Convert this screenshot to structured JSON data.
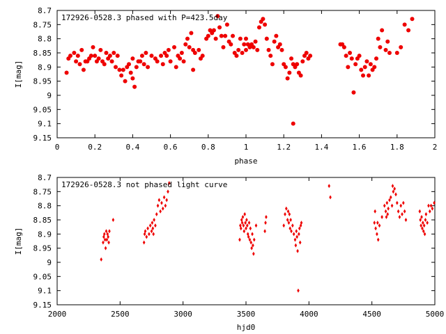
{
  "chart_data": [
    {
      "type": "scatter",
      "title": "172926-0528.3 phased with P=423.5day",
      "xlabel": "phase",
      "ylabel": "I[mag]",
      "xlim": [
        0,
        2
      ],
      "ylim": [
        9.15,
        8.7
      ],
      "y_inverted": true,
      "x_ticks": [
        0,
        0.2,
        0.4,
        0.6,
        0.8,
        1,
        1.2,
        1.4,
        1.6,
        1.8,
        2
      ],
      "x_tick_labels": [
        "0",
        "0.2",
        "0.4",
        "0.6",
        "0.8",
        "1",
        "1.2",
        "1.4",
        "1.6",
        "1.8",
        "2"
      ],
      "y_ticks": [
        8.7,
        8.75,
        8.8,
        8.85,
        8.9,
        8.95,
        9,
        9.05,
        9.1,
        9.15
      ],
      "y_tick_labels": [
        "8.7",
        "8.75",
        "8.8",
        "8.85",
        "8.9",
        "8.95",
        "9",
        "9.05",
        "9.1",
        "9.15"
      ],
      "grid": false,
      "marker": "filled-circle",
      "color": "#ee0000",
      "points": [
        [
          0.05,
          8.92
        ],
        [
          0.06,
          8.87
        ],
        [
          0.07,
          8.86
        ],
        [
          0.09,
          8.85
        ],
        [
          0.1,
          8.88
        ],
        [
          0.11,
          8.86
        ],
        [
          0.12,
          8.89
        ],
        [
          0.13,
          8.84
        ],
        [
          0.14,
          8.91
        ],
        [
          0.15,
          8.88
        ],
        [
          0.16,
          8.88
        ],
        [
          0.17,
          8.87
        ],
        [
          0.18,
          8.86
        ],
        [
          0.19,
          8.83
        ],
        [
          0.2,
          8.86
        ],
        [
          0.21,
          8.88
        ],
        [
          0.22,
          8.87
        ],
        [
          0.23,
          8.84
        ],
        [
          0.24,
          8.88
        ],
        [
          0.25,
          8.89
        ],
        [
          0.26,
          8.85
        ],
        [
          0.27,
          8.87
        ],
        [
          0.28,
          8.86
        ],
        [
          0.29,
          8.88
        ],
        [
          0.3,
          8.85
        ],
        [
          0.31,
          8.9
        ],
        [
          0.32,
          8.86
        ],
        [
          0.33,
          8.91
        ],
        [
          0.34,
          8.93
        ],
        [
          0.35,
          8.91
        ],
        [
          0.36,
          8.95
        ],
        [
          0.37,
          8.9
        ],
        [
          0.38,
          8.89
        ],
        [
          0.39,
          8.92
        ],
        [
          0.4,
          8.87
        ],
        [
          0.4,
          8.94
        ],
        [
          0.41,
          8.97
        ],
        [
          0.42,
          8.9
        ],
        [
          0.43,
          8.88
        ],
        [
          0.44,
          8.88
        ],
        [
          0.45,
          8.86
        ],
        [
          0.46,
          8.89
        ],
        [
          0.47,
          8.85
        ],
        [
          0.48,
          8.9
        ],
        [
          0.5,
          8.86
        ],
        [
          0.52,
          8.87
        ],
        [
          0.53,
          8.88
        ],
        [
          0.55,
          8.86
        ],
        [
          0.56,
          8.89
        ],
        [
          0.57,
          8.85
        ],
        [
          0.58,
          8.86
        ],
        [
          0.59,
          8.84
        ],
        [
          0.6,
          8.88
        ],
        [
          0.62,
          8.83
        ],
        [
          0.63,
          8.9
        ],
        [
          0.64,
          8.86
        ],
        [
          0.65,
          8.87
        ],
        [
          0.66,
          8.85
        ],
        [
          0.67,
          8.88
        ],
        [
          0.68,
          8.82
        ],
        [
          0.69,
          8.8
        ],
        [
          0.7,
          8.83
        ],
        [
          0.71,
          8.78
        ],
        [
          0.72,
          8.84
        ],
        [
          0.72,
          8.91
        ],
        [
          0.73,
          8.85
        ],
        [
          0.75,
          8.84
        ],
        [
          0.76,
          8.87
        ],
        [
          0.77,
          8.86
        ],
        [
          0.79,
          8.8
        ],
        [
          0.8,
          8.79
        ],
        [
          0.81,
          8.77
        ],
        [
          0.82,
          8.78
        ],
        [
          0.83,
          8.77
        ],
        [
          0.84,
          8.8
        ],
        [
          0.85,
          8.72
        ],
        [
          0.86,
          8.76
        ],
        [
          0.87,
          8.79
        ],
        [
          0.88,
          8.83
        ],
        [
          0.89,
          8.79
        ],
        [
          0.9,
          8.75
        ],
        [
          0.91,
          8.81
        ],
        [
          0.92,
          8.82
        ],
        [
          0.93,
          8.79
        ],
        [
          0.94,
          8.85
        ],
        [
          0.95,
          8.86
        ],
        [
          0.96,
          8.84
        ],
        [
          0.97,
          8.8
        ],
        [
          0.98,
          8.85
        ],
        [
          0.99,
          8.82
        ],
        [
          1.0,
          8.84
        ],
        [
          1.0,
          8.8
        ],
        [
          1.01,
          8.82
        ],
        [
          1.02,
          8.83
        ],
        [
          1.03,
          8.82
        ],
        [
          1.04,
          8.83
        ],
        [
          1.05,
          8.81
        ],
        [
          1.06,
          8.84
        ],
        [
          1.07,
          8.76
        ],
        [
          1.08,
          8.74
        ],
        [
          1.09,
          8.73
        ],
        [
          1.1,
          8.75
        ],
        [
          1.11,
          8.8
        ],
        [
          1.12,
          8.84
        ],
        [
          1.13,
          8.86
        ],
        [
          1.14,
          8.89
        ],
        [
          1.15,
          8.81
        ],
        [
          1.16,
          8.79
        ],
        [
          1.17,
          8.83
        ],
        [
          1.18,
          8.82
        ],
        [
          1.19,
          8.84
        ],
        [
          1.2,
          8.89
        ],
        [
          1.21,
          8.9
        ],
        [
          1.22,
          8.94
        ],
        [
          1.23,
          8.92
        ],
        [
          1.24,
          8.87
        ],
        [
          1.25,
          8.89
        ],
        [
          1.25,
          9.1
        ],
        [
          1.26,
          8.9
        ],
        [
          1.27,
          8.89
        ],
        [
          1.28,
          8.92
        ],
        [
          1.29,
          8.93
        ],
        [
          1.3,
          8.88
        ],
        [
          1.31,
          8.86
        ],
        [
          1.32,
          8.85
        ],
        [
          1.33,
          8.87
        ],
        [
          1.34,
          8.86
        ],
        [
          1.5,
          8.82
        ],
        [
          1.51,
          8.82
        ],
        [
          1.52,
          8.83
        ],
        [
          1.53,
          8.86
        ],
        [
          1.54,
          8.9
        ],
        [
          1.55,
          8.85
        ],
        [
          1.56,
          8.87
        ],
        [
          1.57,
          8.99
        ],
        [
          1.58,
          8.89
        ],
        [
          1.59,
          8.87
        ],
        [
          1.6,
          8.86
        ],
        [
          1.61,
          8.91
        ],
        [
          1.62,
          8.93
        ],
        [
          1.63,
          8.9
        ],
        [
          1.64,
          8.88
        ],
        [
          1.65,
          8.93
        ],
        [
          1.66,
          8.89
        ],
        [
          1.67,
          8.91
        ],
        [
          1.68,
          8.9
        ],
        [
          1.69,
          8.87
        ],
        [
          1.7,
          8.8
        ],
        [
          1.71,
          8.83
        ],
        [
          1.72,
          8.77
        ],
        [
          1.74,
          8.84
        ],
        [
          1.75,
          8.81
        ],
        [
          1.76,
          8.85
        ],
        [
          1.8,
          8.85
        ],
        [
          1.82,
          8.83
        ],
        [
          1.84,
          8.75
        ],
        [
          1.86,
          8.77
        ],
        [
          1.88,
          8.73
        ]
      ]
    },
    {
      "type": "scatter",
      "title": "172926-0528.3 not phased light curve",
      "xlabel": "hjd0",
      "ylabel": "I[mag]",
      "xlim": [
        2000,
        5000
      ],
      "ylim": [
        9.15,
        8.7
      ],
      "y_inverted": true,
      "x_ticks": [
        2000,
        2500,
        3000,
        3500,
        4000,
        4500,
        5000
      ],
      "x_tick_labels": [
        "2000",
        "2500",
        "3000",
        "3500",
        "4000",
        "4500",
        "5000"
      ],
      "y_ticks": [
        8.7,
        8.75,
        8.8,
        8.85,
        8.9,
        8.95,
        9,
        9.05,
        9.1,
        9.15
      ],
      "y_tick_labels": [
        "8.7",
        "8.75",
        "8.8",
        "8.85",
        "8.9",
        "8.95",
        "9",
        "9.05",
        "9.1",
        "9.15"
      ],
      "grid": false,
      "marker": "small-diamond",
      "color": "#ee0000",
      "points": [
        [
          2350,
          8.99
        ],
        [
          2365,
          8.93
        ],
        [
          2370,
          8.91
        ],
        [
          2375,
          8.9
        ],
        [
          2380,
          8.92
        ],
        [
          2385,
          8.95
        ],
        [
          2390,
          8.89
        ],
        [
          2395,
          8.92
        ],
        [
          2400,
          8.9
        ],
        [
          2405,
          8.91
        ],
        [
          2410,
          8.93
        ],
        [
          2415,
          8.89
        ],
        [
          2445,
          8.85
        ],
        [
          2690,
          8.93
        ],
        [
          2695,
          8.9
        ],
        [
          2700,
          8.89
        ],
        [
          2710,
          8.91
        ],
        [
          2720,
          8.88
        ],
        [
          2730,
          8.9
        ],
        [
          2740,
          8.87
        ],
        [
          2750,
          8.89
        ],
        [
          2755,
          8.86
        ],
        [
          2760,
          8.88
        ],
        [
          2765,
          8.9
        ],
        [
          2770,
          8.85
        ],
        [
          2780,
          8.87
        ],
        [
          2790,
          8.83
        ],
        [
          2800,
          8.8
        ],
        [
          2810,
          8.78
        ],
        [
          2820,
          8.82
        ],
        [
          2830,
          8.79
        ],
        [
          2840,
          8.81
        ],
        [
          2850,
          8.77
        ],
        [
          2860,
          8.8
        ],
        [
          2870,
          8.78
        ],
        [
          2880,
          8.75
        ],
        [
          2890,
          8.72
        ],
        [
          3450,
          8.92
        ],
        [
          3455,
          8.87
        ],
        [
          3460,
          8.88
        ],
        [
          3465,
          8.85
        ],
        [
          3470,
          8.86
        ],
        [
          3475,
          8.84
        ],
        [
          3480,
          8.87
        ],
        [
          3485,
          8.89
        ],
        [
          3490,
          8.83
        ],
        [
          3495,
          8.86
        ],
        [
          3500,
          8.88
        ],
        [
          3505,
          8.85
        ],
        [
          3510,
          8.87
        ],
        [
          3515,
          8.9
        ],
        [
          3520,
          8.91
        ],
        [
          3525,
          8.86
        ],
        [
          3530,
          8.92
        ],
        [
          3535,
          8.88
        ],
        [
          3540,
          8.93
        ],
        [
          3545,
          8.95
        ],
        [
          3550,
          8.9
        ],
        [
          3555,
          8.94
        ],
        [
          3560,
          8.97
        ],
        [
          3565,
          8.92
        ],
        [
          3580,
          8.87
        ],
        [
          3650,
          8.89
        ],
        [
          3655,
          8.86
        ],
        [
          3660,
          8.84
        ],
        [
          3800,
          8.87
        ],
        [
          3810,
          8.83
        ],
        [
          3820,
          8.81
        ],
        [
          3830,
          8.85
        ],
        [
          3835,
          8.82
        ],
        [
          3840,
          8.86
        ],
        [
          3845,
          8.83
        ],
        [
          3850,
          8.88
        ],
        [
          3855,
          8.85
        ],
        [
          3860,
          8.89
        ],
        [
          3870,
          8.87
        ],
        [
          3880,
          8.9
        ],
        [
          3890,
          8.92
        ],
        [
          3895,
          8.94
        ],
        [
          3900,
          8.89
        ],
        [
          3905,
          8.91
        ],
        [
          3910,
          8.96
        ],
        [
          3915,
          9.1
        ],
        [
          3920,
          8.9
        ],
        [
          3925,
          8.88
        ],
        [
          3930,
          8.93
        ],
        [
          3935,
          8.87
        ],
        [
          3940,
          8.86
        ],
        [
          4160,
          8.73
        ],
        [
          4170,
          8.77
        ],
        [
          4520,
          8.86
        ],
        [
          4525,
          8.82
        ],
        [
          4530,
          8.88
        ],
        [
          4540,
          8.9
        ],
        [
          4545,
          8.86
        ],
        [
          4550,
          8.92
        ],
        [
          4560,
          8.87
        ],
        [
          4580,
          8.84
        ],
        [
          4600,
          8.8
        ],
        [
          4610,
          8.82
        ],
        [
          4615,
          8.84
        ],
        [
          4620,
          8.79
        ],
        [
          4625,
          8.83
        ],
        [
          4630,
          8.81
        ],
        [
          4640,
          8.78
        ],
        [
          4650,
          8.77
        ],
        [
          4660,
          8.8
        ],
        [
          4665,
          8.73
        ],
        [
          4670,
          8.75
        ],
        [
          4680,
          8.74
        ],
        [
          4690,
          8.76
        ],
        [
          4700,
          8.79
        ],
        [
          4710,
          8.82
        ],
        [
          4720,
          8.84
        ],
        [
          4730,
          8.8
        ],
        [
          4740,
          8.83
        ],
        [
          4750,
          8.79
        ],
        [
          4760,
          8.82
        ],
        [
          4770,
          8.85
        ],
        [
          4880,
          8.82
        ],
        [
          4885,
          8.85
        ],
        [
          4890,
          8.87
        ],
        [
          4895,
          8.84
        ],
        [
          4900,
          8.88
        ],
        [
          4905,
          8.86
        ],
        [
          4910,
          8.89
        ],
        [
          4915,
          8.87
        ],
        [
          4920,
          8.9
        ],
        [
          4925,
          8.85
        ],
        [
          4930,
          8.83
        ],
        [
          4940,
          8.86
        ],
        [
          4950,
          8.8
        ],
        [
          4960,
          8.82
        ],
        [
          4970,
          8.8
        ],
        [
          4980,
          8.81
        ],
        [
          4995,
          8.79
        ]
      ]
    }
  ]
}
